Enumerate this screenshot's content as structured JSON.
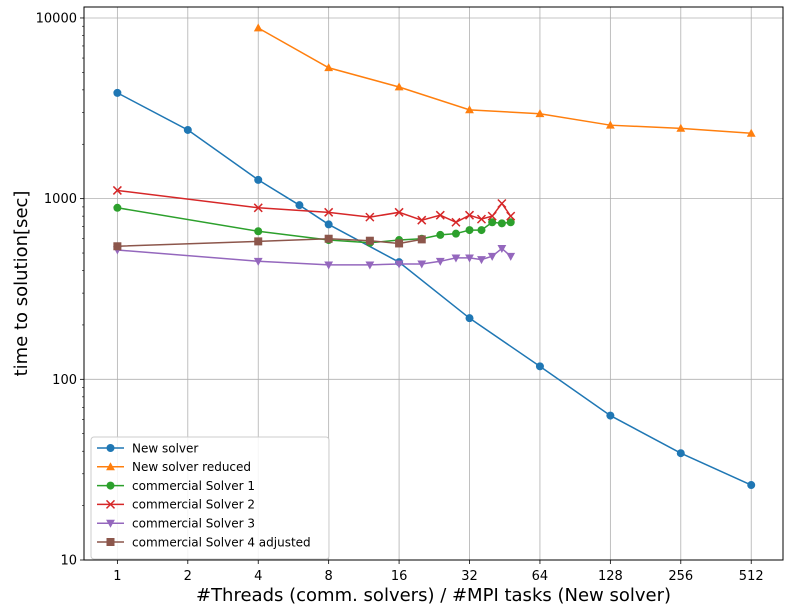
{
  "chart_data": {
    "type": "line",
    "title": "",
    "xlabel": "#Threads (comm. solvers) / #MPI tasks (New solver)",
    "ylabel": "time to solution[sec]",
    "x_scale": "log2",
    "y_scale": "log10",
    "xlim": [
      0.72,
      700
    ],
    "ylim": [
      10,
      11500
    ],
    "x_ticks": [
      1,
      2,
      4,
      8,
      16,
      32,
      64,
      128,
      256,
      512
    ],
    "x_tick_labels": [
      "1",
      "2",
      "4",
      "8",
      "16",
      "32",
      "64",
      "128",
      "256",
      "512"
    ],
    "y_ticks": [
      10,
      100,
      1000,
      10000
    ],
    "y_tick_labels": [
      "10",
      "100",
      "1000",
      "10000"
    ],
    "grid": true,
    "legend_position": "lower-left",
    "series": [
      {
        "name": "New solver",
        "color": "#1f77b4",
        "marker": "circle",
        "x": [
          1,
          2,
          4,
          6,
          8,
          16,
          32,
          64,
          128,
          256,
          512
        ],
        "y": [
          3850,
          2400,
          1270,
          920,
          720,
          445,
          218,
          118,
          63,
          39,
          26
        ]
      },
      {
        "name": "New solver reduced",
        "color": "#ff7f0e",
        "marker": "triangle-up",
        "x": [
          4,
          8,
          16,
          32,
          64,
          128,
          256,
          512
        ],
        "y": [
          8800,
          5300,
          4150,
          3100,
          2950,
          2550,
          2450,
          2300
        ]
      },
      {
        "name": "commercial Solver 1",
        "color": "#2ca02c",
        "marker": "circle",
        "x": [
          1,
          4,
          8,
          12,
          16,
          20,
          24,
          28,
          32,
          36,
          40,
          44,
          48
        ],
        "y": [
          890,
          660,
          590,
          570,
          590,
          600,
          630,
          640,
          670,
          670,
          740,
          730,
          740
        ]
      },
      {
        "name": "commercial Solver 2",
        "color": "#d62728",
        "marker": "x",
        "x": [
          1,
          4,
          8,
          12,
          16,
          20,
          24,
          28,
          32,
          36,
          40,
          44,
          48
        ],
        "y": [
          1110,
          890,
          840,
          790,
          840,
          760,
          810,
          740,
          810,
          770,
          800,
          940,
          800
        ]
      },
      {
        "name": "commercial Solver 3",
        "color": "#9467bd",
        "marker": "triangle-down",
        "x": [
          1,
          4,
          8,
          12,
          16,
          20,
          24,
          28,
          32,
          36,
          40,
          44,
          48
        ],
        "y": [
          520,
          450,
          430,
          430,
          435,
          435,
          450,
          470,
          470,
          460,
          480,
          530,
          480
        ]
      },
      {
        "name": "commercial Solver 4 adjusted",
        "color": "#8c564b",
        "marker": "square",
        "x": [
          1,
          4,
          8,
          12,
          16,
          20
        ],
        "y": [
          545,
          580,
          600,
          585,
          565,
          595
        ]
      }
    ]
  }
}
